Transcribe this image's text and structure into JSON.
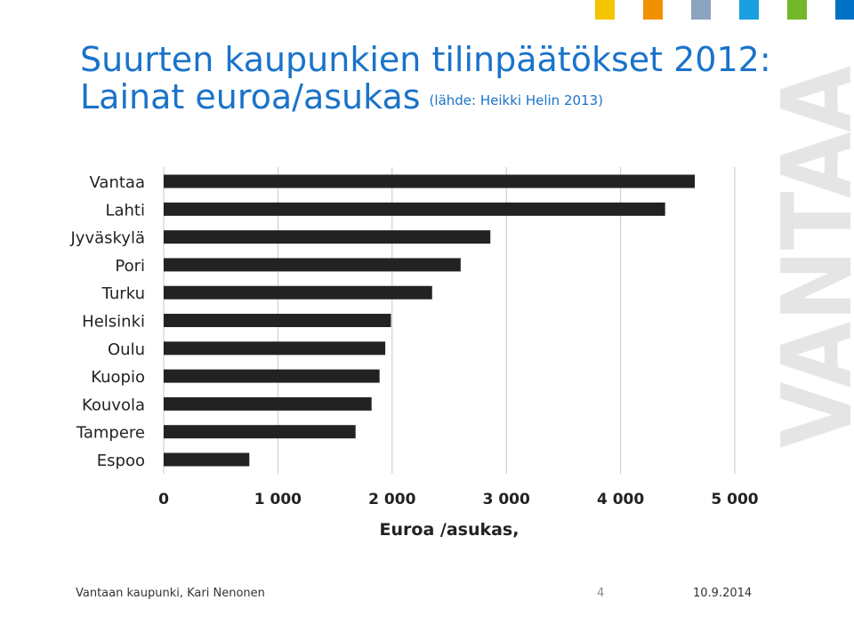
{
  "slide": {
    "title_line1": "Suurten kaupunkien tilinpäätökset 2012:",
    "title_line2": "Lainat euroa/asukas",
    "source": "(lähde: Heikki Helin 2013)",
    "watermark": "VANTAA",
    "footer_left": "Vantaan kaupunki, Kari Nenonen",
    "page_number": "4",
    "date": "10.9.2014",
    "accent_colors": [
      "#f5c400",
      "#f29100",
      "#8aa3be",
      "#1aa0e0",
      "#74b72b",
      "#0072c6"
    ]
  },
  "chart_data": {
    "type": "bar",
    "orientation": "horizontal",
    "categories": [
      "Vantaa",
      "Lahti",
      "Jyväskylä",
      "Pori",
      "Turku",
      "Helsinki",
      "Oulu",
      "Kuopio",
      "Kouvola",
      "Tampere",
      "Espoo"
    ],
    "values": [
      4650,
      4390,
      2860,
      2600,
      2350,
      1990,
      1940,
      1890,
      1820,
      1680,
      750
    ],
    "xlabel": "Euroa /asukas,",
    "xlim": [
      0,
      5000
    ],
    "xticks": [
      0,
      1000,
      2000,
      3000,
      4000,
      5000
    ],
    "xtick_labels": [
      "0",
      "1 000",
      "2 000",
      "3 000",
      "4 000",
      "5 000"
    ],
    "grid": true,
    "bar_color": "#222222",
    "grid_color": "#c8c8c8"
  }
}
